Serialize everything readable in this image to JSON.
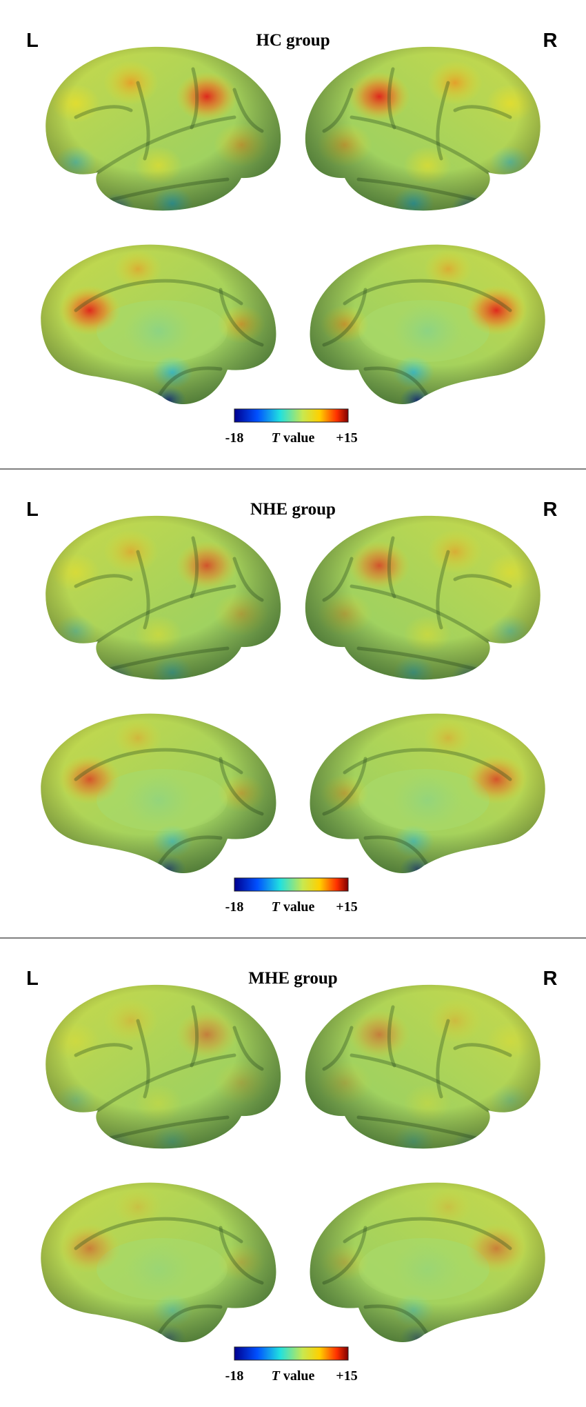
{
  "panels": [
    {
      "title": "HC group",
      "left": "L",
      "right": "R",
      "colorbar": {
        "min": "-18",
        "variable": "T",
        "unit": "value",
        "max": "+15"
      }
    },
    {
      "title": "NHE group",
      "left": "L",
      "right": "R",
      "colorbar": {
        "min": "-18",
        "variable": "T",
        "unit": "value",
        "max": "+15"
      }
    },
    {
      "title": "MHE group",
      "left": "L",
      "right": "R",
      "colorbar": {
        "min": "-18",
        "variable": "T",
        "unit": "value",
        "max": "+15"
      }
    }
  ]
}
